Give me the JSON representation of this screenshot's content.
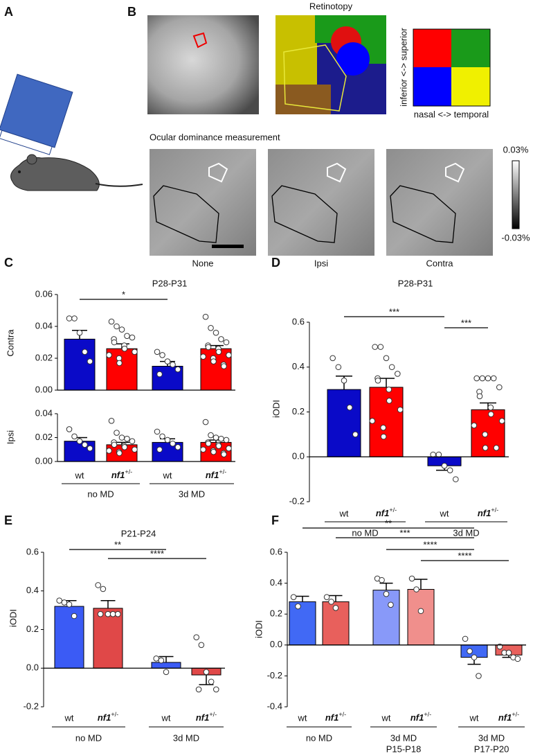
{
  "panel_labels": [
    "A",
    "B",
    "C",
    "D",
    "E",
    "F"
  ],
  "panel_b": {
    "retinotopy_title": "Retinotopy",
    "axis_y": "inferior <-> superior",
    "axis_x": "nasal <-> temporal",
    "od_title": "Ocular dominance measurement",
    "conditions": [
      "None",
      "Ipsi",
      "Contra"
    ],
    "scale_max": "0.03%",
    "scale_min": "-0.03%"
  },
  "chart_data": [
    {
      "type": "bar",
      "title": "P28-P31",
      "ylabel": "Contra",
      "ylim": [
        0,
        0.06
      ],
      "yticks": [
        {
          "value": 0,
          "label": "0.00"
        },
        0.02,
        0.04,
        0.06
      ],
      "significance": [
        "*"
      ],
      "bars": [
        {
          "value": 0.032,
          "error": 0.0055,
          "color": "#0a0ac8",
          "points": [
            0.045,
            0.045,
            0.036,
            0.024,
            0.018
          ]
        },
        {
          "value": 0.026,
          "error": 0.003,
          "color": "#ff0000",
          "points": [
            0.043,
            0.04,
            0.038,
            0.034,
            0.033,
            0.032,
            0.03,
            0.028,
            0.026,
            0.024,
            0.022,
            0.02,
            0.017
          ]
        },
        {
          "value": 0.015,
          "error": 0.003,
          "color": "#0a0ac8",
          "points": [
            0.024,
            0.022,
            0.018,
            0.016,
            0.013,
            0.01
          ]
        },
        {
          "value": 0.026,
          "error": 0.002,
          "color": "#ff0000",
          "points": [
            0.046,
            0.039,
            0.036,
            0.032,
            0.03,
            0.028,
            0.027,
            0.026,
            0.024,
            0.022,
            0.021,
            0.02,
            0.018,
            0.016,
            0.015
          ]
        }
      ]
    },
    {
      "type": "bar",
      "ylabel": "Ipsi",
      "ylim": [
        0,
        0.04
      ],
      "yticks": [
        {
          "value": 0,
          "label": "0.00"
        },
        0.02,
        0.04
      ],
      "bars": [
        {
          "value": 0.017,
          "error": 0.003,
          "color": "#0a0ac8",
          "points": [
            0.027,
            0.021,
            0.017,
            0.014,
            0.011
          ]
        },
        {
          "value": 0.014,
          "error": 0.002,
          "color": "#ff0000",
          "points": [
            0.034,
            0.024,
            0.02,
            0.019,
            0.017,
            0.016,
            0.014,
            0.013,
            0.012,
            0.01,
            0.009,
            0.008,
            0.007
          ]
        },
        {
          "value": 0.016,
          "error": 0.003,
          "color": "#0a0ac8",
          "points": [
            0.025,
            0.021,
            0.018,
            0.015,
            0.012,
            0.01
          ]
        },
        {
          "value": 0.016,
          "error": 0.002,
          "color": "#ff0000",
          "points": [
            0.033,
            0.022,
            0.02,
            0.019,
            0.018,
            0.016,
            0.015,
            0.014,
            0.013,
            0.011,
            0.01,
            0.009,
            0.008,
            0.007,
            0.006
          ]
        }
      ],
      "groups": [
        {
          "label": [
            "no MD"
          ],
          "categories": [
            "wt",
            "nf1+/-"
          ]
        },
        {
          "label": [
            "3d MD"
          ],
          "categories": [
            "wt",
            "nf1+/-"
          ]
        }
      ]
    },
    {
      "type": "bar",
      "title": "P28-P31",
      "ylabel": "iODI",
      "ylim": [
        -0.2,
        0.6
      ],
      "yticks": [
        -0.2,
        {
          "value": 0,
          "label": "0.0"
        },
        0.2,
        0.4,
        0.6
      ],
      "significance": [
        "***",
        "***"
      ],
      "bars": [
        {
          "value": 0.3,
          "error": 0.06,
          "color": "#0a0ac8",
          "points": [
            0.44,
            0.4,
            0.34,
            0.22,
            0.1
          ]
        },
        {
          "value": 0.31,
          "error": 0.04,
          "color": "#ff0000",
          "points": [
            0.49,
            0.49,
            0.44,
            0.4,
            0.37,
            0.35,
            0.34,
            0.3,
            0.25,
            0.21,
            0.16,
            0.13,
            0.09
          ]
        },
        {
          "value": -0.04,
          "error": 0.02,
          "color": "#0a0ac8",
          "points": [
            0.01,
            0.01,
            -0.04,
            -0.06,
            -0.1
          ]
        },
        {
          "value": 0.21,
          "error": 0.03,
          "color": "#ff0000",
          "points": [
            0.35,
            0.35,
            0.35,
            0.35,
            0.31,
            0.29,
            0.27,
            0.22,
            0.19,
            0.16,
            0.14,
            0.1,
            0.04,
            0.04
          ]
        }
      ],
      "groups": [
        {
          "label": [
            "no MD"
          ],
          "categories": [
            "wt",
            "nf1+/-"
          ]
        },
        {
          "label": [
            "3d MD"
          ],
          "categories": [
            "wt",
            "nf1+/-"
          ]
        }
      ]
    },
    {
      "type": "bar",
      "title": "P21-P24",
      "ylabel": "iODI",
      "ylim": [
        -0.2,
        0.6
      ],
      "yticks": [
        -0.2,
        {
          "value": 0,
          "label": "0.0"
        },
        0.2,
        0.4,
        0.6
      ],
      "significance": [
        "**",
        "****"
      ],
      "bars": [
        {
          "value": 0.32,
          "error": 0.03,
          "color": "#3b5bf5",
          "points": [
            0.35,
            0.34,
            0.33,
            0.27
          ]
        },
        {
          "value": 0.31,
          "error": 0.04,
          "color": "#e04848",
          "points": [
            0.43,
            0.41,
            0.28,
            0.28,
            0.28,
            0.28
          ]
        },
        {
          "value": 0.03,
          "error": 0.03,
          "color": "#3b5bf5",
          "points": [
            0.05,
            0.04,
            -0.02
          ]
        },
        {
          "value": -0.035,
          "error": 0.05,
          "color": "#e04848",
          "points": [
            0.16,
            0.12,
            -0.02,
            -0.07,
            -0.11,
            -0.11
          ]
        }
      ],
      "groups": [
        {
          "label": [
            "no MD"
          ],
          "categories": [
            "wt",
            "nf1+/-"
          ]
        },
        {
          "label": [
            "3d MD"
          ],
          "categories": [
            "wt",
            "nf1+/-"
          ]
        }
      ]
    },
    {
      "type": "bar",
      "ylabel": "iODI",
      "ylim": [
        -0.4,
        0.6
      ],
      "yticks": [
        -0.4,
        -0.2,
        {
          "value": 0,
          "label": "0.0"
        },
        0.2,
        0.4,
        0.6
      ],
      "significance": [
        "**",
        "***",
        "****",
        "****"
      ],
      "bars": [
        {
          "value": 0.28,
          "error": 0.035,
          "color": "#4169f5",
          "points": [
            0.31,
            0.25
          ]
        },
        {
          "value": 0.28,
          "error": 0.04,
          "color": "#e8605c",
          "points": [
            0.31,
            0.28,
            0.24
          ]
        },
        {
          "value": 0.355,
          "error": 0.045,
          "color": "#8899f9",
          "points": [
            0.43,
            0.42,
            0.33,
            0.26
          ]
        },
        {
          "value": 0.36,
          "error": 0.065,
          "color": "#f08f8c",
          "points": [
            0.43,
            0.36,
            0.22
          ]
        },
        {
          "value": -0.08,
          "error": 0.045,
          "color": "#4169f5",
          "points": [
            0.04,
            -0.04,
            -0.08,
            -0.2
          ]
        },
        {
          "value": -0.065,
          "error": 0.015,
          "color": "#e8605c",
          "points": [
            -0.01,
            -0.05,
            -0.05,
            -0.08,
            -0.09
          ]
        }
      ],
      "groups": [
        {
          "label": [
            "no MD"
          ],
          "categories": [
            "wt",
            "nf1+/-"
          ]
        },
        {
          "label": [
            "3d MD",
            "P15-P18"
          ],
          "categories": [
            "wt",
            "nf1+/-"
          ]
        },
        {
          "label": [
            "3d MD",
            "P17-P20"
          ],
          "categories": [
            "wt",
            "nf1+/-"
          ]
        }
      ]
    }
  ]
}
